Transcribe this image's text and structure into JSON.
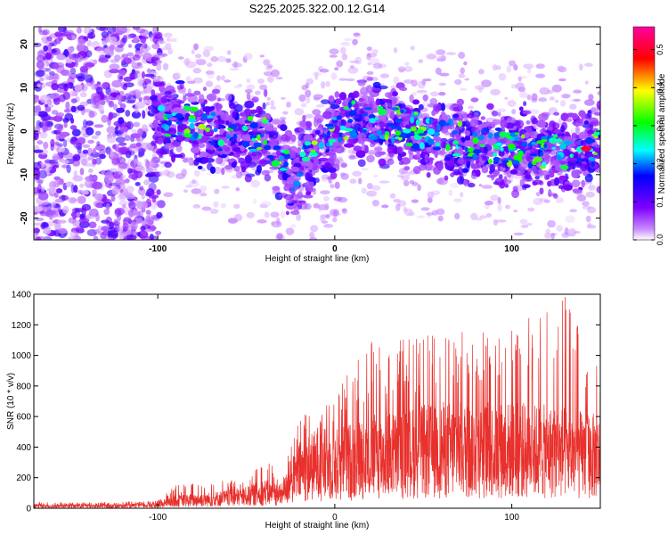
{
  "figure": {
    "title": "S225.2025.322.00.12.G14"
  },
  "colors": {
    "snr_line": "#e8302c",
    "axis": "#000000",
    "background": "#ffffff"
  },
  "chart_data": [
    {
      "type": "heatmap",
      "title": "S225.2025.322.00.12.G14",
      "xlabel": "Height of straight line (km)",
      "ylabel": "Frequency (Hz)",
      "xlim": [
        -170,
        150
      ],
      "ylim": [
        -25,
        24
      ],
      "xticks": [
        -100,
        0,
        100
      ],
      "yticks": [
        -20,
        -10,
        0,
        10,
        20
      ],
      "colorbar": {
        "label": "Normalized spectral amplitude",
        "range": [
          0.0,
          0.56
        ],
        "ticks": [
          0.0,
          0.1,
          0.2,
          0.3,
          0.4,
          0.5
        ],
        "tick_labels": [
          "0.0",
          "0.1",
          "0.2",
          "0.3",
          "0.4",
          "0.5"
        ],
        "colormap": [
          "#ffffff",
          "#7f00ff",
          "#0000ff",
          "#00ffff",
          "#00ff00",
          "#ffff00",
          "#ff0000",
          "#ff00ff"
        ]
      },
      "ridge": {
        "description_points": [
          {
            "x": -100,
            "y": 3
          },
          {
            "x": -80,
            "y": 2
          },
          {
            "x": -60,
            "y": -1
          },
          {
            "x": -40,
            "y": -1
          },
          {
            "x": -25,
            "y": -10
          },
          {
            "x": -10,
            "y": -5
          },
          {
            "x": 10,
            "y": 3
          },
          {
            "x": 40,
            "y": 1
          },
          {
            "x": 70,
            "y": -2
          },
          {
            "x": 100,
            "y": -4
          },
          {
            "x": 120,
            "y": -5
          },
          {
            "x": 140,
            "y": -4
          }
        ]
      }
    },
    {
      "type": "line",
      "xlabel": "Height of straight line (km)",
      "ylabel": "SNR (10 * v/v)",
      "xlim": [
        -170,
        150
      ],
      "ylim": [
        0,
        1400
      ],
      "xticks": [
        -100,
        0,
        100
      ],
      "yticks": [
        0,
        200,
        400,
        600,
        800,
        1000,
        1200,
        1400
      ],
      "envelope": [
        {
          "x": -170,
          "mean": 15,
          "peak": 40
        },
        {
          "x": -130,
          "mean": 15,
          "peak": 40
        },
        {
          "x": -100,
          "mean": 20,
          "peak": 50
        },
        {
          "x": -90,
          "mean": 50,
          "peak": 150
        },
        {
          "x": -70,
          "mean": 60,
          "peak": 180
        },
        {
          "x": -50,
          "mean": 80,
          "peak": 200
        },
        {
          "x": -40,
          "mean": 110,
          "peak": 320
        },
        {
          "x": -30,
          "mean": 90,
          "peak": 250
        },
        {
          "x": -20,
          "mean": 250,
          "peak": 620
        },
        {
          "x": -10,
          "mean": 300,
          "peak": 750
        },
        {
          "x": 0,
          "mean": 300,
          "peak": 800
        },
        {
          "x": 20,
          "mean": 350,
          "peak": 1100
        },
        {
          "x": 60,
          "mean": 400,
          "peak": 1150
        },
        {
          "x": 100,
          "mean": 400,
          "peak": 1200
        },
        {
          "x": 130,
          "mean": 380,
          "peak": 1400
        },
        {
          "x": 150,
          "mean": 350,
          "peak": 1000
        }
      ]
    }
  ]
}
